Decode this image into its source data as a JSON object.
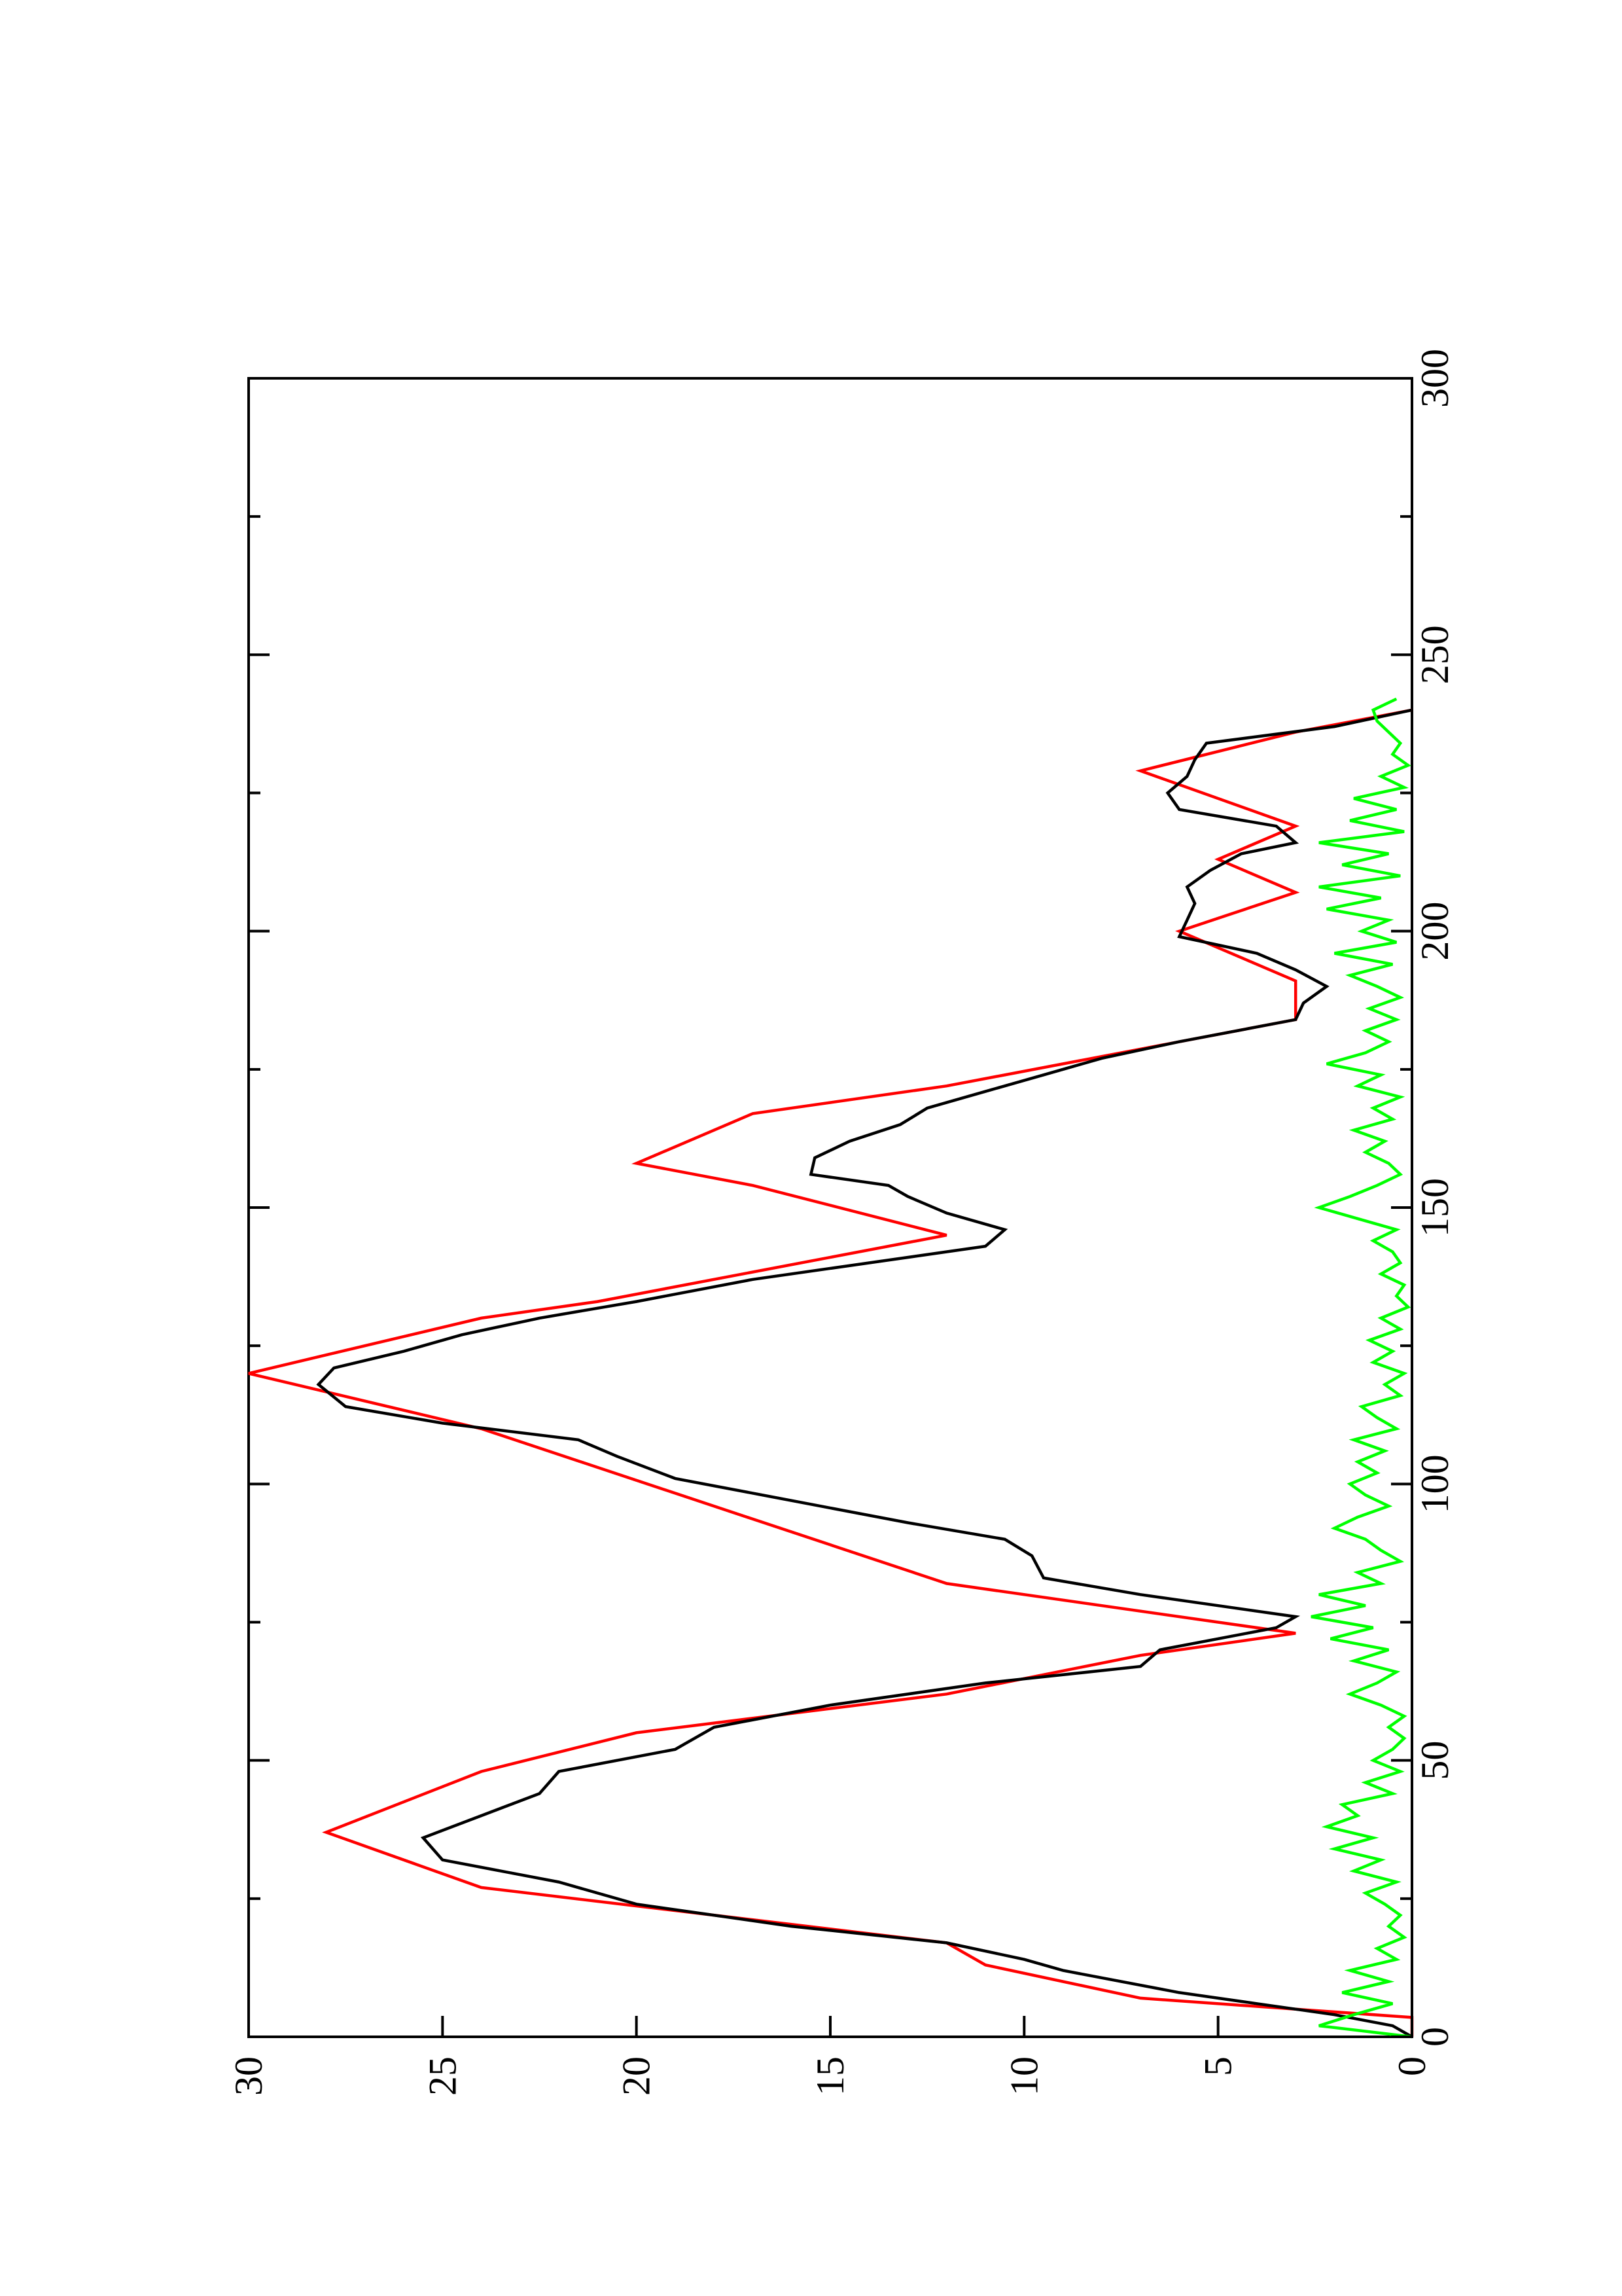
{
  "chart_data": {
    "type": "line",
    "orientation": "rotated 90 degrees counter-clockwise",
    "title": "",
    "xlabel": "",
    "ylabel": "",
    "xlim": [
      0,
      300
    ],
    "ylim": [
      0,
      30
    ],
    "x_ticks": [
      0,
      50,
      100,
      150,
      200,
      250,
      300
    ],
    "x_tick_labels": [
      "0",
      "50",
      "100",
      "150",
      "200",
      "250",
      "300"
    ],
    "x_minor_ticks": [
      25,
      75,
      125,
      175,
      225,
      275
    ],
    "y_ticks": [
      0,
      5,
      10,
      15,
      20,
      25,
      30
    ],
    "y_tick_labels": [
      "0",
      "5",
      "10",
      "15",
      "20",
      "25",
      "30"
    ],
    "grid": false,
    "legend": "none",
    "series": [
      {
        "color": "#ff0000",
        "x": [
          0,
          3.5,
          7,
          7,
          13,
          13,
          17,
          17,
          27,
          27,
          37,
          37,
          48,
          48,
          55,
          55,
          62,
          62,
          69,
          69,
          73,
          73,
          82,
          82,
          103,
          103,
          110,
          110,
          120,
          120,
          130,
          130,
          133,
          133,
          145,
          145,
          154,
          154,
          158,
          158,
          167,
          167,
          172,
          172,
          184,
          184,
          191,
          191,
          200,
          200,
          207,
          207,
          213,
          213,
          219,
          219,
          229,
          229,
          236,
          236,
          240
        ],
        "y": [
          0,
          0,
          7,
          7,
          11,
          11,
          12,
          12,
          24,
          24,
          28,
          28,
          24,
          24,
          20,
          20,
          12,
          12,
          7,
          7,
          3,
          3,
          12,
          12,
          21,
          21,
          24,
          24,
          30,
          30,
          24,
          24,
          21,
          21,
          12,
          12,
          17,
          17,
          20,
          20,
          17,
          17,
          12,
          12,
          3,
          3,
          3,
          3,
          6,
          6,
          3,
          3,
          5,
          5,
          3,
          3,
          7,
          7,
          3,
          3,
          0
        ]
      },
      {
        "color": "#000000",
        "x": [
          0,
          2,
          4,
          6,
          8,
          12,
          14,
          17,
          20,
          24,
          28,
          32,
          36,
          40,
          44,
          48,
          52,
          56,
          60,
          64,
          67,
          70,
          72,
          74,
          76,
          78,
          80,
          83,
          87,
          90,
          93,
          97,
          101,
          105,
          108,
          111,
          114,
          118,
          121,
          124,
          127,
          130,
          133,
          137,
          140,
          143,
          146,
          149,
          152,
          154,
          156,
          159,
          162,
          165,
          168,
          171,
          174,
          177,
          180,
          184,
          187,
          190,
          193,
          196,
          199,
          202,
          205,
          208,
          211,
          214,
          216,
          219,
          222,
          225,
          228,
          231,
          234,
          237,
          240
        ],
        "y": [
          0,
          0.5,
          2,
          4,
          6,
          9,
          10,
          12,
          16,
          20,
          22,
          25,
          25.5,
          24,
          22.5,
          22,
          19,
          18,
          15,
          11,
          7,
          6.5,
          5,
          3.5,
          3,
          5,
          7,
          9.5,
          9.8,
          10.5,
          13,
          16,
          19,
          20.5,
          21.5,
          25,
          27.5,
          28.2,
          27.8,
          26,
          24.5,
          22.5,
          20,
          17,
          14,
          11,
          10.5,
          12,
          13,
          13.5,
          15.5,
          15.4,
          14.5,
          13.2,
          12.5,
          11,
          9.5,
          8,
          6,
          3,
          2.8,
          2.2,
          3,
          4,
          6,
          5.8,
          5.6,
          5.8,
          5.2,
          4.4,
          3,
          3.5,
          6,
          6.3,
          5.8,
          5.6,
          5.3,
          2,
          0
        ]
      },
      {
        "color": "#00ff00",
        "x": [
          0,
          2,
          4,
          6,
          8,
          10,
          12,
          14,
          16,
          18,
          20,
          22,
          24,
          26,
          28,
          30,
          32,
          34,
          36,
          38,
          40,
          42,
          44,
          46,
          48,
          50,
          52,
          54,
          56,
          58,
          60,
          62,
          64,
          66,
          68,
          70,
          72,
          74,
          76,
          78,
          80,
          82,
          84,
          86,
          88,
          90,
          92,
          94,
          96,
          98,
          100,
          102,
          104,
          106,
          108,
          110,
          112,
          114,
          116,
          118,
          120,
          122,
          124,
          126,
          128,
          130,
          132,
          134,
          136,
          138,
          140,
          142,
          144,
          146,
          148,
          150,
          152,
          154,
          156,
          158,
          160,
          162,
          164,
          166,
          168,
          170,
          172,
          174,
          176,
          178,
          180,
          182,
          184,
          186,
          188,
          190,
          192,
          194,
          196,
          198,
          200,
          202,
          204,
          206,
          208,
          210,
          212,
          214,
          216,
          218,
          220,
          222,
          224,
          226,
          228,
          230,
          232,
          234,
          236,
          238,
          240,
          242
        ],
        "y": [
          0,
          2.4,
          1.5,
          0.5,
          1.8,
          0.6,
          1.6,
          0.4,
          0.9,
          0.2,
          0.6,
          0.3,
          0.7,
          1.2,
          0.4,
          1.5,
          0.8,
          2.0,
          1.0,
          2.2,
          1.4,
          1.8,
          0.5,
          1.2,
          0.3,
          1.0,
          0.5,
          0.2,
          0.6,
          0.2,
          0.8,
          1.6,
          0.9,
          0.4,
          1.5,
          0.6,
          2.1,
          1.0,
          2.6,
          1.2,
          2.4,
          0.8,
          1.4,
          0.3,
          0.8,
          1.2,
          2.0,
          1.4,
          0.6,
          1.2,
          1.6,
          0.9,
          1.4,
          0.7,
          1.5,
          0.4,
          0.9,
          1.3,
          0.3,
          0.7,
          0.2,
          1.0,
          0.5,
          1.1,
          0.3,
          0.8,
          0.1,
          0.4,
          0.2,
          0.8,
          0.3,
          0.5,
          1.0,
          0.4,
          1.4,
          2.4,
          1.6,
          0.9,
          0.3,
          0.6,
          1.2,
          0.7,
          1.5,
          0.5,
          1.0,
          0.3,
          1.4,
          0.8,
          2.2,
          1.2,
          0.6,
          1.2,
          0.4,
          1.1,
          0.3,
          0.9,
          1.6,
          0.5,
          2.0,
          0.4,
          1.3,
          0.6,
          2.2,
          0.8,
          2.4,
          0.3,
          1.8,
          0.6,
          2.4,
          0.2,
          1.6,
          0.4,
          1.5,
          0.2,
          0.8,
          0.1,
          0.5,
          0.3,
          0.6,
          0.9,
          1.0,
          0.4
        ]
      }
    ]
  }
}
